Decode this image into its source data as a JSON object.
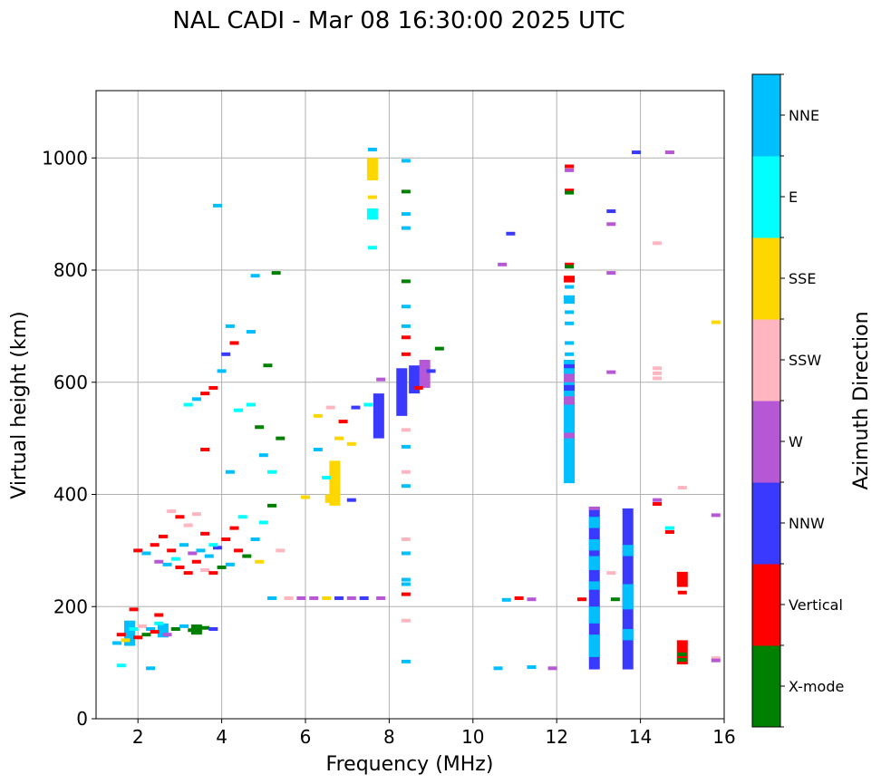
{
  "chart_data": {
    "type": "scatter",
    "title": "NAL CADI - Mar 08 16:30:00 2025 UTC",
    "xlabel": "Frequency (MHz)",
    "ylabel": "Virtual height (km)",
    "xlim": [
      1,
      16
    ],
    "ylim": [
      0,
      1120
    ],
    "xticks": [
      2,
      4,
      6,
      8,
      10,
      12,
      14,
      16
    ],
    "yticks": [
      0,
      200,
      400,
      600,
      800,
      1000
    ],
    "grid": true,
    "colorbar": {
      "label": "Azimuth Direction",
      "categories": [
        {
          "name": "X-mode",
          "color": "#008000"
        },
        {
          "name": "Vertical",
          "color": "#ff0000"
        },
        {
          "name": "NNW",
          "color": "#3a3aff"
        },
        {
          "name": "W",
          "color": "#b657d6"
        },
        {
          "name": "SSW",
          "color": "#ffb6c1"
        },
        {
          "name": "SSE",
          "color": "#ffd700"
        },
        {
          "name": "E",
          "color": "#00ffff"
        },
        {
          "name": "NNE",
          "color": "#00bfff"
        }
      ]
    },
    "blocks": [
      {
        "x": 12.3,
        "y0": 420,
        "y1": 640,
        "dir": "NNE"
      },
      {
        "x": 12.3,
        "y0": 500,
        "y1": 510,
        "dir": "W"
      },
      {
        "x": 12.3,
        "y0": 560,
        "y1": 575,
        "dir": "W"
      },
      {
        "x": 12.3,
        "y0": 585,
        "y1": 595,
        "dir": "NNW"
      },
      {
        "x": 12.3,
        "y0": 600,
        "y1": 615,
        "dir": "W"
      },
      {
        "x": 12.3,
        "y0": 625,
        "y1": 632,
        "dir": "NNW"
      },
      {
        "x": 12.3,
        "y0": 740,
        "y1": 755,
        "dir": "NNE"
      },
      {
        "x": 12.3,
        "y0": 778,
        "y1": 790,
        "dir": "Vertical"
      },
      {
        "x": 12.9,
        "y0": 88,
        "y1": 378,
        "dir": "NNW"
      },
      {
        "x": 12.9,
        "y0": 110,
        "y1": 150,
        "dir": "NNE"
      },
      {
        "x": 12.9,
        "y0": 170,
        "y1": 200,
        "dir": "NNE"
      },
      {
        "x": 12.9,
        "y0": 230,
        "y1": 245,
        "dir": "NNE"
      },
      {
        "x": 12.9,
        "y0": 265,
        "y1": 290,
        "dir": "NNE"
      },
      {
        "x": 12.9,
        "y0": 300,
        "y1": 320,
        "dir": "NNE"
      },
      {
        "x": 12.9,
        "y0": 340,
        "y1": 360,
        "dir": "NNE"
      },
      {
        "x": 12.9,
        "y0": 372,
        "y1": 378,
        "dir": "W"
      },
      {
        "x": 13.7,
        "y0": 88,
        "y1": 375,
        "dir": "NNW"
      },
      {
        "x": 13.7,
        "y0": 140,
        "y1": 160,
        "dir": "NNE"
      },
      {
        "x": 13.7,
        "y0": 195,
        "y1": 240,
        "dir": "NNE"
      },
      {
        "x": 13.7,
        "y0": 290,
        "y1": 310,
        "dir": "NNE"
      },
      {
        "x": 15.0,
        "y0": 97,
        "y1": 140,
        "dir": "Vertical"
      },
      {
        "x": 15.0,
        "y0": 235,
        "y1": 262,
        "dir": "Vertical"
      },
      {
        "x": 1.8,
        "y0": 130,
        "y1": 175,
        "dir": "NNE"
      },
      {
        "x": 2.6,
        "y0": 145,
        "y1": 170,
        "dir": "NNE"
      },
      {
        "x": 3.4,
        "y0": 150,
        "y1": 168,
        "dir": "X-mode"
      },
      {
        "x": 8.3,
        "y0": 540,
        "y1": 625,
        "dir": "NNW"
      },
      {
        "x": 8.6,
        "y0": 580,
        "y1": 630,
        "dir": "NNW"
      },
      {
        "x": 8.85,
        "y0": 590,
        "y1": 640,
        "dir": "W"
      },
      {
        "x": 6.6,
        "y0": 385,
        "y1": 400,
        "dir": "SSE"
      },
      {
        "x": 6.7,
        "y0": 380,
        "y1": 460,
        "dir": "SSE"
      },
      {
        "x": 7.6,
        "y0": 890,
        "y1": 910,
        "dir": "E"
      },
      {
        "x": 7.6,
        "y0": 960,
        "y1": 1000,
        "dir": "SSE"
      },
      {
        "x": 7.75,
        "y0": 500,
        "y1": 580,
        "dir": "NNW"
      }
    ],
    "points": [
      {
        "x": 1.5,
        "y": 135,
        "dir": "NNE"
      },
      {
        "x": 1.6,
        "y": 150,
        "dir": "Vertical"
      },
      {
        "x": 1.7,
        "y": 140,
        "dir": "SSE"
      },
      {
        "x": 1.9,
        "y": 160,
        "dir": "E"
      },
      {
        "x": 2.0,
        "y": 145,
        "dir": "Vertical"
      },
      {
        "x": 2.1,
        "y": 165,
        "dir": "SSW"
      },
      {
        "x": 2.2,
        "y": 150,
        "dir": "X-mode"
      },
      {
        "x": 2.3,
        "y": 160,
        "dir": "NNE"
      },
      {
        "x": 2.4,
        "y": 155,
        "dir": "Vertical"
      },
      {
        "x": 2.5,
        "y": 170,
        "dir": "E"
      },
      {
        "x": 2.7,
        "y": 150,
        "dir": "W"
      },
      {
        "x": 2.9,
        "y": 160,
        "dir": "X-mode"
      },
      {
        "x": 3.1,
        "y": 165,
        "dir": "NNE"
      },
      {
        "x": 3.3,
        "y": 158,
        "dir": "X-mode"
      },
      {
        "x": 3.6,
        "y": 162,
        "dir": "X-mode"
      },
      {
        "x": 3.8,
        "y": 160,
        "dir": "NNW"
      },
      {
        "x": 1.6,
        "y": 95,
        "dir": "E"
      },
      {
        "x": 2.3,
        "y": 90,
        "dir": "NNE"
      },
      {
        "x": 2.5,
        "y": 185,
        "dir": "Vertical"
      },
      {
        "x": 1.9,
        "y": 195,
        "dir": "Vertical"
      },
      {
        "x": 2.0,
        "y": 300,
        "dir": "Vertical"
      },
      {
        "x": 2.2,
        "y": 295,
        "dir": "NNE"
      },
      {
        "x": 2.4,
        "y": 310,
        "dir": "Vertical"
      },
      {
        "x": 2.5,
        "y": 280,
        "dir": "W"
      },
      {
        "x": 2.6,
        "y": 325,
        "dir": "Vertical"
      },
      {
        "x": 2.7,
        "y": 275,
        "dir": "NNE"
      },
      {
        "x": 2.8,
        "y": 300,
        "dir": "Vertical"
      },
      {
        "x": 2.9,
        "y": 285,
        "dir": "E"
      },
      {
        "x": 3.0,
        "y": 270,
        "dir": "Vertical"
      },
      {
        "x": 3.1,
        "y": 310,
        "dir": "NNE"
      },
      {
        "x": 3.2,
        "y": 260,
        "dir": "Vertical"
      },
      {
        "x": 3.3,
        "y": 295,
        "dir": "W"
      },
      {
        "x": 3.4,
        "y": 280,
        "dir": "Vertical"
      },
      {
        "x": 3.5,
        "y": 300,
        "dir": "NNE"
      },
      {
        "x": 3.6,
        "y": 265,
        "dir": "SSW"
      },
      {
        "x": 3.7,
        "y": 290,
        "dir": "NNE"
      },
      {
        "x": 3.8,
        "y": 260,
        "dir": "Vertical"
      },
      {
        "x": 3.9,
        "y": 305,
        "dir": "NNW"
      },
      {
        "x": 4.0,
        "y": 270,
        "dir": "X-mode"
      },
      {
        "x": 4.1,
        "y": 320,
        "dir": "Vertical"
      },
      {
        "x": 4.2,
        "y": 275,
        "dir": "NNE"
      },
      {
        "x": 2.8,
        "y": 370,
        "dir": "SSW"
      },
      {
        "x": 3.0,
        "y": 360,
        "dir": "Vertical"
      },
      {
        "x": 3.2,
        "y": 345,
        "dir": "SSW"
      },
      {
        "x": 3.4,
        "y": 365,
        "dir": "SSW"
      },
      {
        "x": 3.6,
        "y": 330,
        "dir": "Vertical"
      },
      {
        "x": 3.8,
        "y": 310,
        "dir": "E"
      },
      {
        "x": 4.4,
        "y": 300,
        "dir": "Vertical"
      },
      {
        "x": 4.6,
        "y": 290,
        "dir": "X-mode"
      },
      {
        "x": 4.8,
        "y": 320,
        "dir": "NNE"
      },
      {
        "x": 5.0,
        "y": 350,
        "dir": "E"
      },
      {
        "x": 5.2,
        "y": 380,
        "dir": "X-mode"
      },
      {
        "x": 5.4,
        "y": 300,
        "dir": "SSW"
      },
      {
        "x": 4.9,
        "y": 280,
        "dir": "SSE"
      },
      {
        "x": 4.3,
        "y": 340,
        "dir": "Vertical"
      },
      {
        "x": 4.5,
        "y": 360,
        "dir": "E"
      },
      {
        "x": 3.2,
        "y": 560,
        "dir": "E"
      },
      {
        "x": 3.4,
        "y": 570,
        "dir": "NNE"
      },
      {
        "x": 3.6,
        "y": 580,
        "dir": "Vertical"
      },
      {
        "x": 3.8,
        "y": 590,
        "dir": "Vertical"
      },
      {
        "x": 4.0,
        "y": 620,
        "dir": "NNE"
      },
      {
        "x": 4.1,
        "y": 650,
        "dir": "NNW"
      },
      {
        "x": 4.2,
        "y": 700,
        "dir": "NNE"
      },
      {
        "x": 4.3,
        "y": 670,
        "dir": "Vertical"
      },
      {
        "x": 3.6,
        "y": 480,
        "dir": "Vertical"
      },
      {
        "x": 4.7,
        "y": 690,
        "dir": "NNE"
      },
      {
        "x": 4.7,
        "y": 560,
        "dir": "E"
      },
      {
        "x": 4.9,
        "y": 520,
        "dir": "X-mode"
      },
      {
        "x": 5.0,
        "y": 470,
        "dir": "NNE"
      },
      {
        "x": 5.2,
        "y": 440,
        "dir": "E"
      },
      {
        "x": 5.1,
        "y": 630,
        "dir": "X-mode"
      },
      {
        "x": 4.4,
        "y": 550,
        "dir": "E"
      },
      {
        "x": 3.9,
        "y": 915,
        "dir": "NNE"
      },
      {
        "x": 4.8,
        "y": 790,
        "dir": "NNE"
      },
      {
        "x": 5.3,
        "y": 795,
        "dir": "X-mode"
      },
      {
        "x": 4.2,
        "y": 440,
        "dir": "NNE"
      },
      {
        "x": 5.4,
        "y": 500,
        "dir": "X-mode"
      },
      {
        "x": 6.3,
        "y": 540,
        "dir": "SSE"
      },
      {
        "x": 6.6,
        "y": 555,
        "dir": "SSW"
      },
      {
        "x": 6.8,
        "y": 500,
        "dir": "SSE"
      },
      {
        "x": 6.9,
        "y": 530,
        "dir": "Vertical"
      },
      {
        "x": 7.1,
        "y": 490,
        "dir": "SSE"
      },
      {
        "x": 6.3,
        "y": 480,
        "dir": "NNE"
      },
      {
        "x": 6.5,
        "y": 430,
        "dir": "E"
      },
      {
        "x": 7.2,
        "y": 555,
        "dir": "NNW"
      },
      {
        "x": 7.5,
        "y": 560,
        "dir": "E"
      },
      {
        "x": 7.1,
        "y": 390,
        "dir": "NNW"
      },
      {
        "x": 6.0,
        "y": 395,
        "dir": "SSE"
      },
      {
        "x": 7.6,
        "y": 840,
        "dir": "E"
      },
      {
        "x": 7.6,
        "y": 1015,
        "dir": "NNE"
      },
      {
        "x": 7.6,
        "y": 930,
        "dir": "SSE"
      },
      {
        "x": 7.8,
        "y": 605,
        "dir": "W"
      },
      {
        "x": 5.6,
        "y": 215,
        "dir": "SSW"
      },
      {
        "x": 5.9,
        "y": 215,
        "dir": "W"
      },
      {
        "x": 6.2,
        "y": 215,
        "dir": "W"
      },
      {
        "x": 6.5,
        "y": 215,
        "dir": "SSE"
      },
      {
        "x": 6.8,
        "y": 215,
        "dir": "NNW"
      },
      {
        "x": 7.1,
        "y": 215,
        "dir": "W"
      },
      {
        "x": 7.4,
        "y": 215,
        "dir": "NNW"
      },
      {
        "x": 7.8,
        "y": 215,
        "dir": "W"
      },
      {
        "x": 5.2,
        "y": 215,
        "dir": "NNE"
      },
      {
        "x": 8.4,
        "y": 995,
        "dir": "NNE"
      },
      {
        "x": 8.4,
        "y": 940,
        "dir": "X-mode"
      },
      {
        "x": 8.4,
        "y": 900,
        "dir": "NNE"
      },
      {
        "x": 8.4,
        "y": 875,
        "dir": "NNE"
      },
      {
        "x": 8.4,
        "y": 780,
        "dir": "X-mode"
      },
      {
        "x": 8.4,
        "y": 735,
        "dir": "NNE"
      },
      {
        "x": 8.4,
        "y": 700,
        "dir": "NNE"
      },
      {
        "x": 8.4,
        "y": 680,
        "dir": "Vertical"
      },
      {
        "x": 8.4,
        "y": 650,
        "dir": "Vertical"
      },
      {
        "x": 8.4,
        "y": 515,
        "dir": "SSW"
      },
      {
        "x": 8.4,
        "y": 485,
        "dir": "NNE"
      },
      {
        "x": 8.4,
        "y": 440,
        "dir": "SSW"
      },
      {
        "x": 8.4,
        "y": 415,
        "dir": "NNE"
      },
      {
        "x": 8.4,
        "y": 320,
        "dir": "SSW"
      },
      {
        "x": 8.4,
        "y": 295,
        "dir": "NNE"
      },
      {
        "x": 8.4,
        "y": 248,
        "dir": "NNE"
      },
      {
        "x": 8.4,
        "y": 240,
        "dir": "NNE"
      },
      {
        "x": 8.4,
        "y": 222,
        "dir": "Vertical"
      },
      {
        "x": 8.4,
        "y": 175,
        "dir": "SSW"
      },
      {
        "x": 8.4,
        "y": 102,
        "dir": "NNE"
      },
      {
        "x": 9.2,
        "y": 660,
        "dir": "X-mode"
      },
      {
        "x": 9.0,
        "y": 620,
        "dir": "NNW"
      },
      {
        "x": 8.7,
        "y": 590,
        "dir": "Vertical"
      },
      {
        "x": 10.6,
        "y": 90,
        "dir": "NNE"
      },
      {
        "x": 10.8,
        "y": 212,
        "dir": "NNE"
      },
      {
        "x": 11.1,
        "y": 215,
        "dir": "Vertical"
      },
      {
        "x": 11.4,
        "y": 213,
        "dir": "W"
      },
      {
        "x": 11.4,
        "y": 92,
        "dir": "NNE"
      },
      {
        "x": 10.9,
        "y": 865,
        "dir": "NNW"
      },
      {
        "x": 10.7,
        "y": 810,
        "dir": "W"
      },
      {
        "x": 11.9,
        "y": 90,
        "dir": "W"
      },
      {
        "x": 12.3,
        "y": 985,
        "dir": "Vertical"
      },
      {
        "x": 12.3,
        "y": 978,
        "dir": "W"
      },
      {
        "x": 12.3,
        "y": 942,
        "dir": "Vertical"
      },
      {
        "x": 12.3,
        "y": 938,
        "dir": "X-mode"
      },
      {
        "x": 12.3,
        "y": 810,
        "dir": "Vertical"
      },
      {
        "x": 12.3,
        "y": 806,
        "dir": "X-mode"
      },
      {
        "x": 12.3,
        "y": 725,
        "dir": "NNE"
      },
      {
        "x": 12.3,
        "y": 705,
        "dir": "NNE"
      },
      {
        "x": 12.3,
        "y": 670,
        "dir": "NNE"
      },
      {
        "x": 12.3,
        "y": 650,
        "dir": "NNE"
      },
      {
        "x": 12.3,
        "y": 770,
        "dir": "NNE"
      },
      {
        "x": 13.3,
        "y": 905,
        "dir": "NNW"
      },
      {
        "x": 13.3,
        "y": 882,
        "dir": "W"
      },
      {
        "x": 13.3,
        "y": 795,
        "dir": "W"
      },
      {
        "x": 13.3,
        "y": 618,
        "dir": "W"
      },
      {
        "x": 12.6,
        "y": 213,
        "dir": "Vertical"
      },
      {
        "x": 13.4,
        "y": 213,
        "dir": "X-mode"
      },
      {
        "x": 13.3,
        "y": 260,
        "dir": "SSW"
      },
      {
        "x": 13.9,
        "y": 1010,
        "dir": "NNW"
      },
      {
        "x": 14.7,
        "y": 1010,
        "dir": "W"
      },
      {
        "x": 14.4,
        "y": 848,
        "dir": "SSW"
      },
      {
        "x": 14.4,
        "y": 625,
        "dir": "SSW"
      },
      {
        "x": 14.4,
        "y": 616,
        "dir": "SSW"
      },
      {
        "x": 14.4,
        "y": 607,
        "dir": "SSW"
      },
      {
        "x": 14.4,
        "y": 390,
        "dir": "W"
      },
      {
        "x": 14.4,
        "y": 383,
        "dir": "Vertical"
      },
      {
        "x": 14.7,
        "y": 340,
        "dir": "E"
      },
      {
        "x": 14.7,
        "y": 333,
        "dir": "Vertical"
      },
      {
        "x": 15.0,
        "y": 412,
        "dir": "SSW"
      },
      {
        "x": 15.0,
        "y": 225,
        "dir": "Vertical"
      },
      {
        "x": 15.0,
        "y": 115,
        "dir": "X-mode"
      },
      {
        "x": 15.0,
        "y": 105,
        "dir": "X-mode"
      },
      {
        "x": 15.8,
        "y": 707,
        "dir": "SSE"
      },
      {
        "x": 15.8,
        "y": 363,
        "dir": "W"
      },
      {
        "x": 15.8,
        "y": 108,
        "dir": "SSW"
      },
      {
        "x": 15.8,
        "y": 104,
        "dir": "W"
      }
    ]
  }
}
